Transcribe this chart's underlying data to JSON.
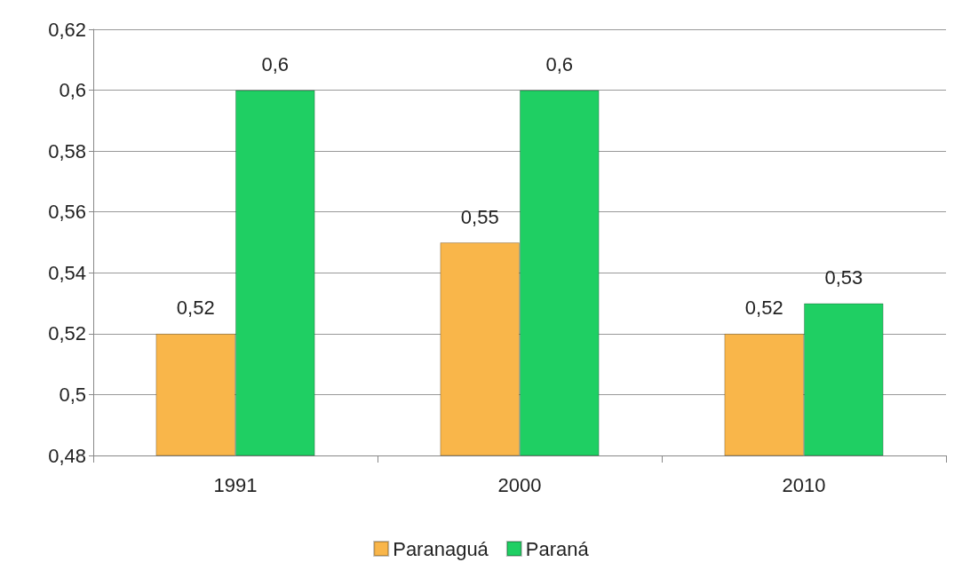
{
  "chart_data": {
    "type": "bar",
    "categories": [
      "1991",
      "2000",
      "2010"
    ],
    "series": [
      {
        "name": "Paranaguá",
        "color": "#f9b64a",
        "values": [
          0.52,
          0.55,
          0.52
        ],
        "value_labels": [
          "0,52",
          "0,55",
          "0,52"
        ]
      },
      {
        "name": "Paraná",
        "color": "#1fcf63",
        "values": [
          0.6,
          0.6,
          0.53
        ],
        "value_labels": [
          "0,6",
          "0,6",
          "0,53"
        ]
      }
    ],
    "ylim": [
      0.48,
      0.62
    ],
    "yticks": [
      {
        "value": 0.48,
        "label": "0,48"
      },
      {
        "value": 0.5,
        "label": "0,5"
      },
      {
        "value": 0.52,
        "label": "0,52"
      },
      {
        "value": 0.54,
        "label": "0,54"
      },
      {
        "value": 0.56,
        "label": "0,56"
      },
      {
        "value": 0.58,
        "label": "0,58"
      },
      {
        "value": 0.6,
        "label": "0,6"
      },
      {
        "value": 0.62,
        "label": "0,62"
      }
    ],
    "grid": "y",
    "legend": "bottom"
  }
}
